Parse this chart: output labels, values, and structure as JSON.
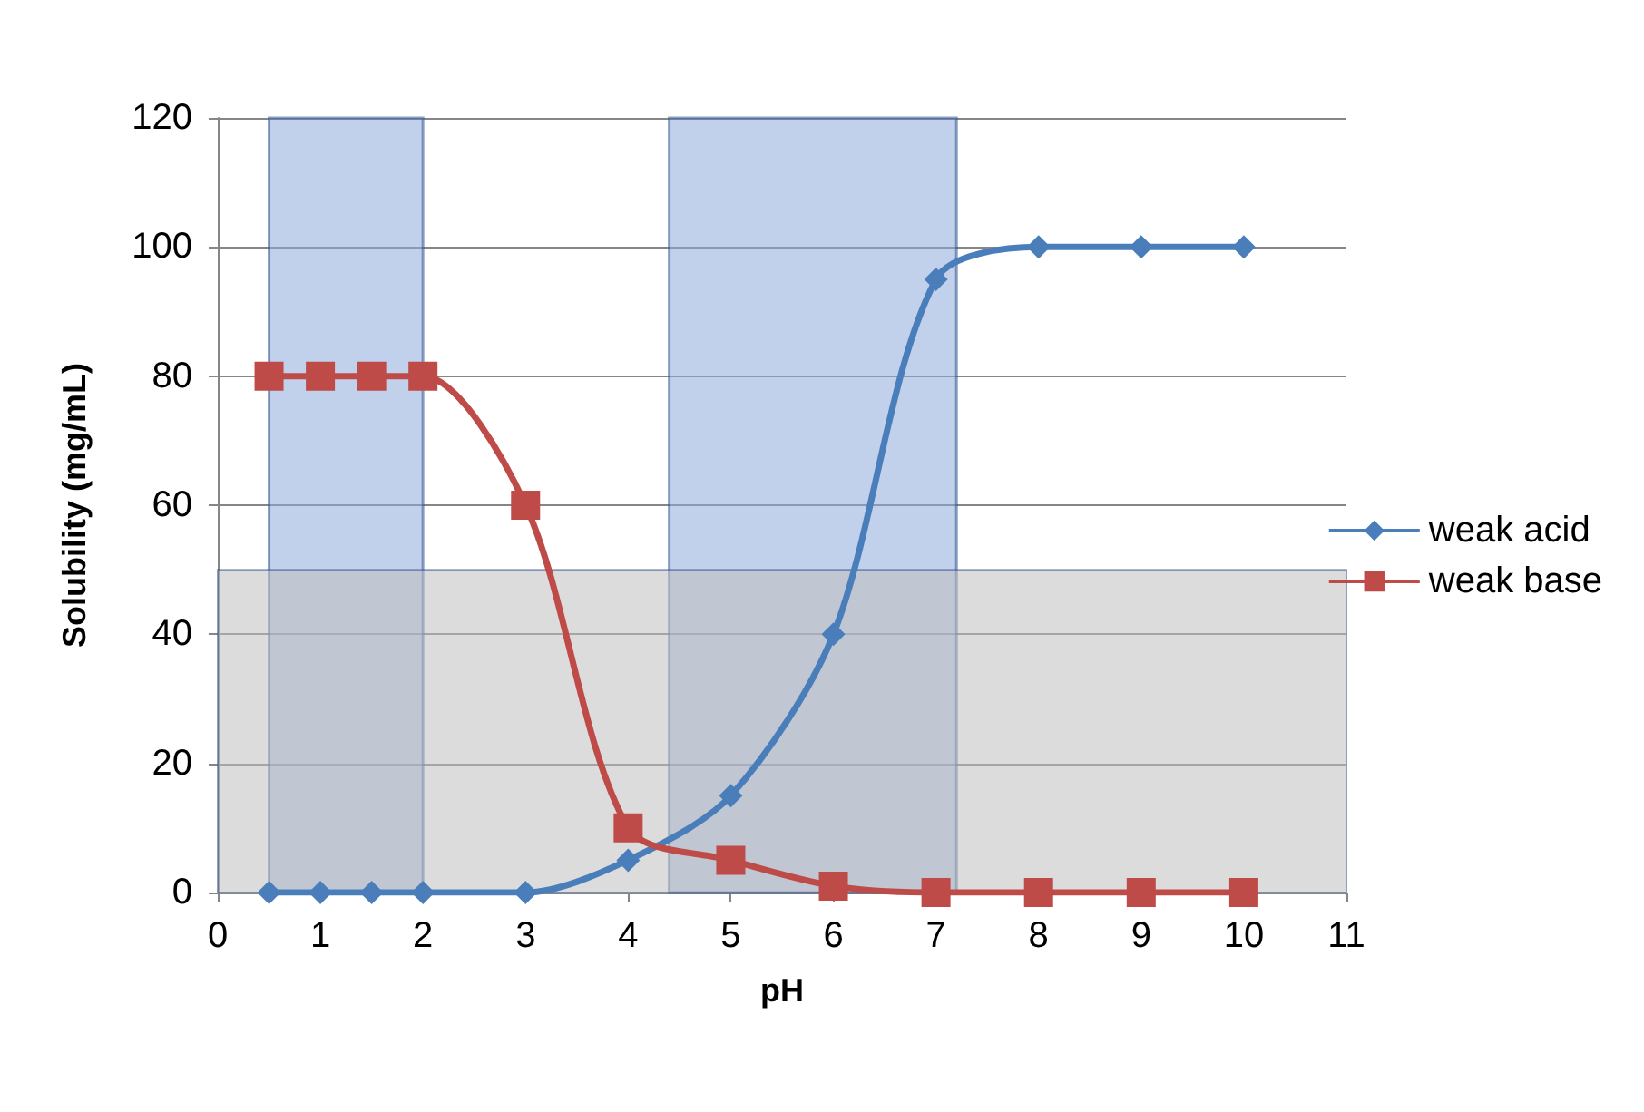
{
  "chart_data": {
    "type": "line",
    "xlabel": "pH",
    "ylabel": "Solubility (mg/mL)",
    "xlim": [
      0,
      11
    ],
    "xticks": [
      0,
      1,
      2,
      3,
      4,
      5,
      6,
      7,
      8,
      9,
      10,
      11
    ],
    "ylim": [
      0,
      120
    ],
    "yticks": [
      0,
      20,
      40,
      60,
      80,
      100,
      120
    ],
    "grid": "y",
    "legend": "right",
    "series": [
      {
        "name": "weak acid",
        "color": "#4a7ebb",
        "marker": "diamond",
        "x": [
          0.5,
          1,
          1.5,
          2,
          3,
          4,
          5,
          6,
          7,
          8,
          9,
          10
        ],
        "values": [
          0,
          0,
          0,
          0,
          0,
          5,
          15,
          40,
          95,
          100,
          100,
          100
        ]
      },
      {
        "name": "weak base",
        "color": "#be4b48",
        "marker": "square",
        "x": [
          0.5,
          1,
          1.5,
          2,
          3,
          4,
          5,
          6,
          7,
          8,
          9,
          10
        ],
        "values": [
          80,
          80,
          80,
          80,
          60,
          10,
          5,
          1,
          0,
          0,
          0,
          0
        ]
      }
    ],
    "bands": [
      {
        "axis": "x",
        "from": 0.5,
        "to": 2,
        "color": "#8eaadb"
      },
      {
        "axis": "x",
        "from": 4.4,
        "to": 7.2,
        "color": "#8eaadb"
      },
      {
        "axis": "y",
        "from": 0,
        "to": 50,
        "color": "#bfbfbf"
      }
    ]
  }
}
